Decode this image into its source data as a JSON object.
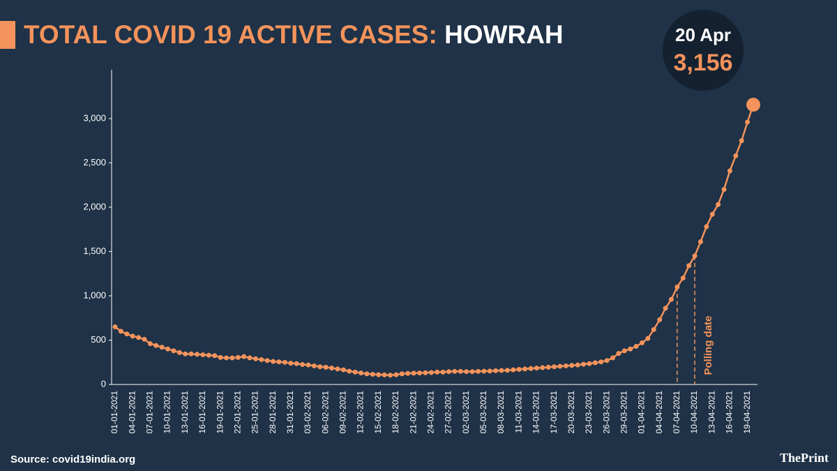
{
  "chart_data": {
    "type": "line",
    "title_prefix": "TOTAL COVID 19 ACTIVE CASES:",
    "title_place": "HOWRAH",
    "callout": {
      "date": "20 Apr",
      "value_label": "3,156"
    },
    "source": "Source: covid19india.org",
    "brand": "ThePrint",
    "annotation": {
      "text": "Polling date",
      "x": [
        "07-04-2021",
        "10-04-2021"
      ]
    },
    "color": "#f4935b",
    "categories": [
      "01-01-2021",
      null,
      null,
      "04-01-2021",
      null,
      null,
      "07-01-2021",
      null,
      null,
      "10-01-2021",
      null,
      null,
      "13-01-2021",
      null,
      null,
      "16-01-2021",
      null,
      null,
      "19-01-2021",
      null,
      null,
      "22-01-2021",
      null,
      null,
      "25-01-2021",
      null,
      null,
      "28-01-2021",
      null,
      null,
      "31-01-2021",
      null,
      null,
      "03-02-2021",
      null,
      null,
      "06-02-2021",
      null,
      null,
      "09-02-2021",
      null,
      null,
      "12-02-2021",
      null,
      null,
      "15-02-2021",
      null,
      null,
      "18-02-2021",
      null,
      null,
      "21-02-2021",
      null,
      null,
      "24-02-2021",
      null,
      null,
      "27-02-2021",
      null,
      null,
      "02-03-2021",
      null,
      null,
      "05-03-2021",
      null,
      null,
      "08-03-2021",
      null,
      null,
      "11-03-2021",
      null,
      null,
      "14-03-2021",
      null,
      null,
      "17-03-2021",
      null,
      null,
      "20-03-2021",
      null,
      null,
      "23-03-2021",
      null,
      null,
      "26-03-2021",
      null,
      null,
      "29-03-2021",
      null,
      null,
      "01-04-2021",
      null,
      null,
      "04-04-2021",
      null,
      null,
      "07-04-2021",
      null,
      null,
      "10-04-2021",
      null,
      null,
      "13-04-2021",
      null,
      null,
      "16-04-2021",
      null,
      null,
      "19-04-2021",
      null
    ],
    "values": [
      650,
      600,
      570,
      545,
      530,
      510,
      460,
      440,
      420,
      400,
      380,
      360,
      345,
      345,
      340,
      335,
      330,
      325,
      305,
      300,
      300,
      305,
      315,
      300,
      290,
      280,
      270,
      260,
      255,
      250,
      240,
      235,
      225,
      220,
      210,
      200,
      195,
      185,
      175,
      165,
      150,
      140,
      130,
      120,
      115,
      110,
      108,
      105,
      110,
      120,
      125,
      128,
      130,
      132,
      135,
      140,
      140,
      145,
      148,
      148,
      145,
      145,
      148,
      150,
      152,
      155,
      158,
      160,
      165,
      170,
      175,
      180,
      185,
      190,
      195,
      200,
      205,
      210,
      215,
      220,
      228,
      235,
      245,
      255,
      270,
      300,
      350,
      380,
      400,
      430,
      470,
      520,
      620,
      730,
      860,
      960,
      1100,
      1200,
      1340,
      1450,
      1610,
      1780,
      1920,
      2030,
      2200,
      2410,
      2580,
      2750,
      2960,
      3156
    ],
    "ylim": [
      0,
      3550
    ],
    "yticks": [
      0,
      500,
      {
        "value": 1000,
        "label": "1,000"
      },
      {
        "value": 1500,
        "label": "1,500"
      },
      {
        "value": 2000,
        "label": "2,000"
      },
      {
        "value": 2500,
        "label": "2,500"
      },
      {
        "value": 3000,
        "label": "3,000"
      }
    ],
    "grid": false
  }
}
